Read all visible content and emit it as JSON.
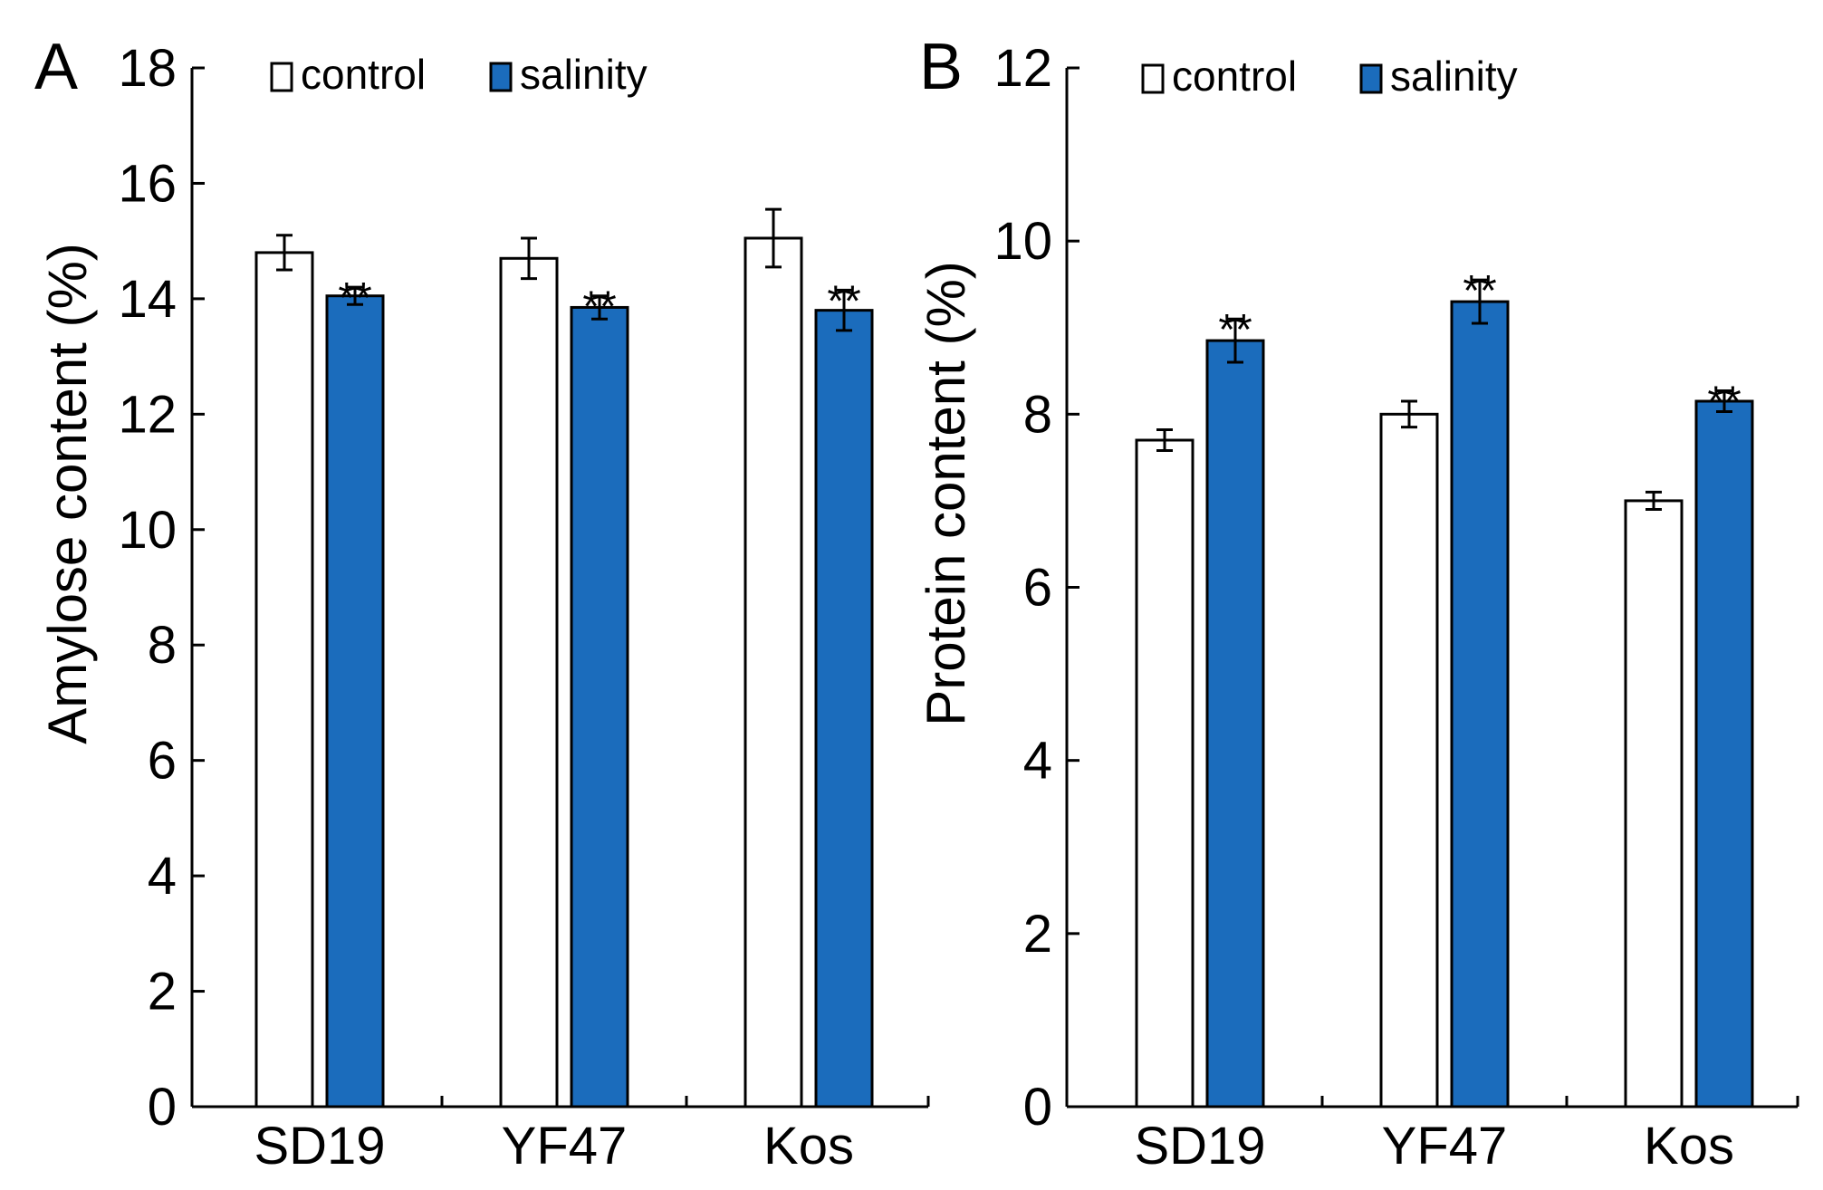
{
  "chart_data": [
    {
      "panel": "A",
      "type": "bar",
      "categories": [
        "SD19",
        "YF47",
        "Kos"
      ],
      "series": [
        {
          "name": "control",
          "values": [
            14.8,
            14.7,
            15.05
          ],
          "errors": [
            0.3,
            0.35,
            0.5
          ]
        },
        {
          "name": "salinity",
          "values": [
            14.05,
            13.85,
            13.8
          ],
          "errors": [
            0.15,
            0.2,
            0.35
          ]
        }
      ],
      "significance": [
        "**",
        "**",
        "**"
      ],
      "xlabel": "",
      "ylabel": "Amylose content (%)",
      "ylim": [
        0,
        18
      ],
      "yticks": [
        "0",
        "2",
        "4",
        "6",
        "8",
        "10",
        "12",
        "14",
        "16",
        "18"
      ],
      "legend": "top",
      "grid": false
    },
    {
      "panel": "B",
      "type": "bar",
      "categories": [
        "SD19",
        "YF47",
        "Kos"
      ],
      "series": [
        {
          "name": "control",
          "values": [
            7.7,
            8.0,
            7.0
          ],
          "errors": [
            0.12,
            0.15,
            0.1
          ]
        },
        {
          "name": "salinity",
          "values": [
            8.85,
            9.3,
            8.15
          ],
          "errors": [
            0.25,
            0.25,
            0.12
          ]
        }
      ],
      "significance": [
        "**",
        "**",
        "**"
      ],
      "xlabel": "",
      "ylabel": "Protein content (%)",
      "ylim": [
        0,
        12
      ],
      "yticks": [
        "0",
        "2",
        "4",
        "6",
        "8",
        "10",
        "12"
      ],
      "legend": "top",
      "grid": false
    }
  ],
  "colors": {
    "control": "#ffffff",
    "salinity": "#1b6cbc",
    "axis": "#000000"
  }
}
